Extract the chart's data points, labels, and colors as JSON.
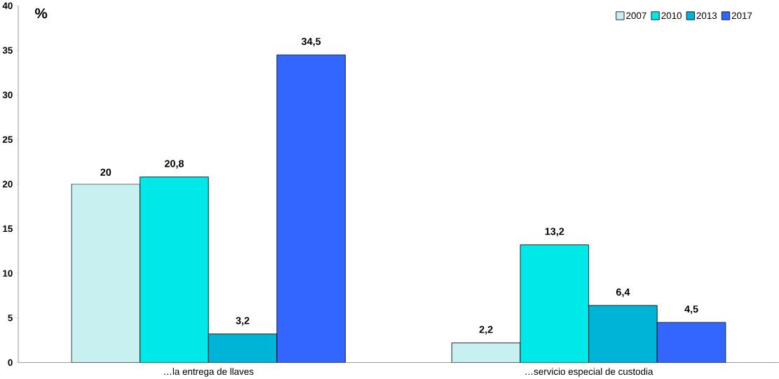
{
  "chart_data": {
    "type": "bar",
    "ylabel": "%",
    "categories": [
      "…la entrega de llaves",
      "…servicio especial de custodia"
    ],
    "series": [
      {
        "name": "2007",
        "color": "#c8f0f0",
        "values": [
          20,
          2.2
        ],
        "value_labels": [
          "20",
          "2,2"
        ]
      },
      {
        "name": "2010",
        "color": "#00e8e8",
        "values": [
          20.8,
          13.2
        ],
        "value_labels": [
          "20,8",
          "13,2"
        ]
      },
      {
        "name": "2013",
        "color": "#00b4d8",
        "values": [
          3.2,
          6.4
        ],
        "value_labels": [
          "3,2",
          "6,4"
        ]
      },
      {
        "name": "2017",
        "color": "#3366ff",
        "values": [
          34.5,
          4.5
        ],
        "value_labels": [
          "34,5",
          "4,5"
        ]
      }
    ],
    "ylim": [
      0,
      40
    ],
    "yticks": [
      0,
      5,
      10,
      15,
      20,
      25,
      30,
      35,
      40
    ],
    "grid": false,
    "legend": "top right"
  }
}
